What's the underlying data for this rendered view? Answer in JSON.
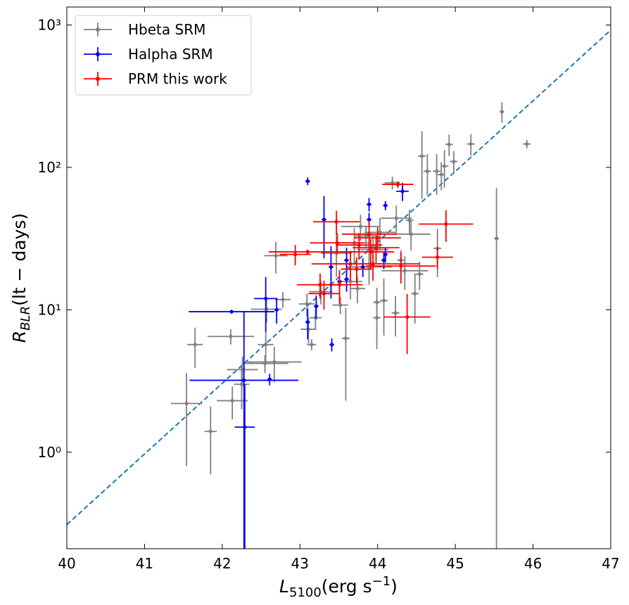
{
  "chart_data": {
    "type": "scatter",
    "xlabel": {
      "main": "L",
      "sub": "5100",
      "rest": "(erg s",
      "sup": "−1",
      "end": ")"
    },
    "ylabel": {
      "main": "R",
      "sub": "BLR",
      "rest": "(lt − days)"
    },
    "xlim": [
      40,
      47
    ],
    "ylim": [
      0.21,
      1337
    ],
    "log_y": true,
    "xticks": [
      40,
      41,
      42,
      43,
      44,
      45,
      46,
      47
    ],
    "yticks": [
      {
        "value": 1,
        "label": "10⁰"
      },
      {
        "value": 10,
        "label": "10¹"
      },
      {
        "value": 100,
        "label": "10²"
      },
      {
        "value": 1000,
        "label": "10³"
      }
    ],
    "legend": "upper left",
    "fit_line": {
      "x": [
        40,
        47
      ],
      "values": [
        0.31,
        920
      ],
      "color": "#1f77b4"
    },
    "series": [
      {
        "name": "Hbeta SRM",
        "color": "#808080",
        "x": [
          41.54,
          41.65,
          41.85,
          42.11,
          42.13,
          42.25,
          42.26,
          42.55,
          42.56,
          42.57,
          42.69,
          42.78,
          42.67,
          43.09,
          43.11,
          43.15,
          43.2,
          43.27,
          43.4,
          43.47,
          43.52,
          43.59,
          43.65,
          43.7,
          43.74,
          43.78,
          43.85,
          43.89,
          43.94,
          43.99,
          43.99,
          44.03,
          44.08,
          44.19,
          44.23,
          44.24,
          44.3,
          44.35,
          44.41,
          44.43,
          44.48,
          44.54,
          44.57,
          44.64,
          44.76,
          44.77,
          44.82,
          44.86,
          44.92,
          44.98,
          45.2,
          45.53,
          45.6,
          45.92
        ],
        "values": [
          2.2,
          5.7,
          1.4,
          6.5,
          2.3,
          3.0,
          3.8,
          4.2,
          5.7,
          10.1,
          24,
          11.8,
          4.3,
          11,
          7.3,
          5.7,
          8.8,
          13.4,
          15,
          25,
          10.8,
          6.3,
          15.8,
          29.5,
          14.1,
          38.5,
          33,
          20,
          26.5,
          11.3,
          8.8,
          35,
          11.6,
          78,
          9.5,
          44,
          22.3,
          18.8,
          42.5,
          34,
          13,
          17.8,
          120,
          94,
          94,
          27,
          89,
          102,
          145,
          110,
          146,
          31.7,
          246,
          146
        ],
        "xerr": [
          0.2,
          0.1,
          0.08,
          0.3,
          0.2,
          0.1,
          0.2,
          0.3,
          0.1,
          0.2,
          0.15,
          0.1,
          0.35,
          0.1,
          0.1,
          0.06,
          0.08,
          0.15,
          0.1,
          0.2,
          0.1,
          0.05,
          0.15,
          0.2,
          0.1,
          0.25,
          0.15,
          0.3,
          0.2,
          0.05,
          0.05,
          0.2,
          0.05,
          0.1,
          0.05,
          0.2,
          0.05,
          0.3,
          0.05,
          0.25,
          0.05,
          0.05,
          0.05,
          0.05,
          0.05,
          0.05,
          0.05,
          0.05,
          0.05,
          0.05,
          0.05,
          0.03,
          0.03,
          0.05
        ],
        "yerr": [
          1.4,
          1.8,
          0.7,
          0.8,
          0.6,
          1.0,
          0.9,
          0.6,
          1.5,
          2,
          6,
          1.5,
          1.2,
          2,
          1.5,
          0.5,
          1.5,
          2.5,
          3,
          8,
          1.5,
          4,
          4,
          8,
          3,
          8,
          6,
          5,
          6,
          3,
          3.5,
          9,
          5,
          8,
          3,
          10,
          4,
          5,
          8,
          8,
          5,
          4,
          60,
          30,
          30,
          10,
          20,
          30,
          25,
          20,
          25,
          40,
          40,
          10
        ]
      },
      {
        "name": "Halpha SRM",
        "color": "#0000ff",
        "x": [
          42.12,
          42.29,
          42.28,
          42.56,
          42.61,
          42.7,
          43.1,
          43.1,
          43.21,
          43.31,
          43.4,
          43.41,
          43.51,
          43.6,
          43.6,
          43.81,
          43.89,
          43.89,
          44.08,
          44.1,
          44.32,
          44.1
        ],
        "values": [
          9.7,
          1.5,
          3.2,
          12,
          3.25,
          10,
          80,
          8.2,
          10.6,
          43,
          20,
          5.7,
          15.8,
          22.3,
          16.4,
          20,
          55,
          43,
          22.3,
          54,
          68,
          24.5
        ],
        "xerr": [
          0.55,
          0.13,
          0.7,
          0.15,
          0.03,
          0.03,
          0.03,
          0.03,
          0.03,
          0.03,
          0.03,
          0.03,
          0.03,
          0.03,
          0.03,
          0.03,
          0.03,
          0.03,
          0.03,
          0.03,
          0.08,
          0.03
        ],
        "yerr": [
          0.3,
          1.5,
          6.5,
          5,
          0.3,
          2,
          5,
          2,
          2,
          20,
          8,
          0.6,
          3,
          5,
          3,
          3,
          6,
          5,
          3,
          4,
          10,
          3
        ]
      },
      {
        "name": "PRM this work",
        "color": "#ff0000",
        "x": [
          42.94,
          43.1,
          43.26,
          43.31,
          43.47,
          43.48,
          43.51,
          43.65,
          43.73,
          43.76,
          43.89,
          43.91,
          43.94,
          43.98,
          44.0,
          44.26,
          44.3,
          44.38,
          44.77,
          44.88
        ],
        "values": [
          24.5,
          25.5,
          15,
          13,
          41.5,
          29.5,
          15,
          21,
          19.3,
          28.5,
          34,
          25.5,
          21,
          27.3,
          32,
          76,
          20.3,
          8.9,
          23.4,
          40
        ],
        "xerr": [
          0.2,
          0.5,
          0.3,
          0.2,
          0.3,
          0.35,
          0.3,
          0.5,
          0.2,
          0.3,
          0.35,
          0.3,
          0.6,
          0.3,
          0.3,
          0.2,
          0.45,
          0.3,
          0.2,
          0.35
        ],
        "yerr": [
          4,
          1,
          3,
          3,
          8,
          5,
          4,
          5,
          4,
          6,
          8,
          6,
          5,
          6,
          6,
          4,
          5,
          4,
          4,
          10
        ]
      }
    ]
  }
}
